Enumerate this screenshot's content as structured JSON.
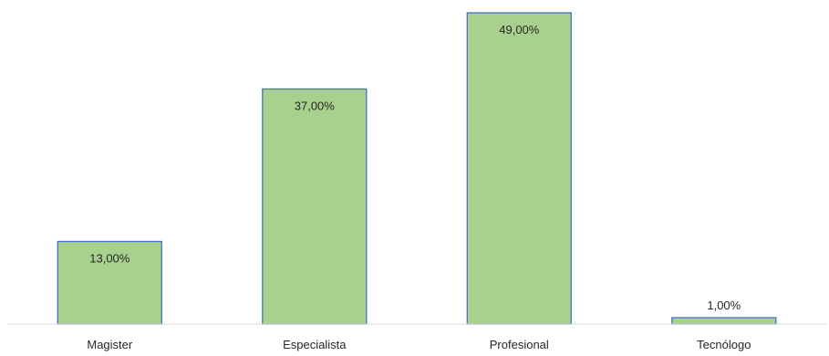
{
  "chart_data": {
    "type": "bar",
    "categories": [
      "Magister",
      "Especialista",
      "Profesional",
      "Tecnólogo"
    ],
    "values": [
      13,
      37,
      49,
      1
    ],
    "data_labels": [
      "13,00%",
      "37,00%",
      "49,00%",
      "1,00%"
    ],
    "title": "",
    "xlabel": "",
    "ylabel": "",
    "ylim": [
      0,
      50
    ],
    "grid": false,
    "legend": "none",
    "bar_color": "#a9d18e",
    "bar_border_color": "#4472c4",
    "axis_color": "#d9d9d9",
    "text_color": "#262626"
  }
}
